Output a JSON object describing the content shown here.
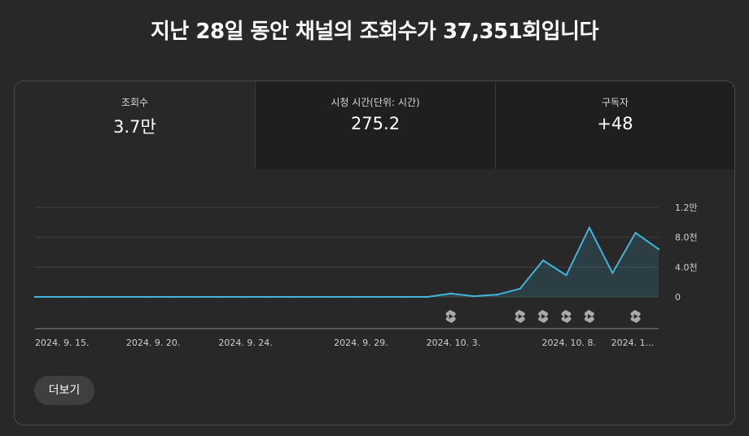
{
  "headline": "지난 28일 동안 채널의 조회수가 37,351회입니다",
  "tabs": [
    {
      "label": "조회수",
      "value": "3.7만"
    },
    {
      "label": "시청 시간(단위: 시간)",
      "value": "275.2"
    },
    {
      "label": "구독자",
      "value": "+48"
    }
  ],
  "more_label": "더보기",
  "colors": {
    "line": "#41b4d8",
    "grid": "#404040",
    "badge": "#aaaaaa"
  },
  "chart_data": {
    "type": "area",
    "title": "",
    "ylim": [
      0,
      12000
    ],
    "yticks": [
      {
        "value": 0,
        "label": "0"
      },
      {
        "value": 4000,
        "label": "4.0천"
      },
      {
        "value": 8000,
        "label": "8.0천"
      },
      {
        "value": 12000,
        "label": "1.2만"
      }
    ],
    "xtick_labels": [
      {
        "index": 0,
        "label": "2024. 9. 15."
      },
      {
        "index": 5,
        "label": "2024. 9. 20."
      },
      {
        "index": 9,
        "label": "2024. 9. 24."
      },
      {
        "index": 14,
        "label": "2024. 9. 29."
      },
      {
        "index": 18,
        "label": "2024. 10. 3."
      },
      {
        "index": 23,
        "label": "2024. 10. 8."
      },
      {
        "index": 26,
        "label": "2024. 1..."
      }
    ],
    "dates": [
      "2024-09-15",
      "2024-09-16",
      "2024-09-17",
      "2024-09-18",
      "2024-09-19",
      "2024-09-20",
      "2024-09-21",
      "2024-09-22",
      "2024-09-23",
      "2024-09-24",
      "2024-09-25",
      "2024-09-26",
      "2024-09-27",
      "2024-09-28",
      "2024-09-29",
      "2024-09-30",
      "2024-10-01",
      "2024-10-02",
      "2024-10-03",
      "2024-10-04",
      "2024-10-05",
      "2024-10-06",
      "2024-10-07",
      "2024-10-08",
      "2024-10-09",
      "2024-10-10",
      "2024-10-11",
      "2024-10-12"
    ],
    "series": [
      {
        "values": [
          0,
          0,
          0,
          0,
          0,
          0,
          0,
          0,
          0,
          0,
          0,
          0,
          0,
          0,
          0,
          0,
          0,
          0,
          450,
          100,
          300,
          1100,
          4900,
          2900,
          9300,
          3200,
          8600,
          6400
        ]
      }
    ],
    "shorts_markers": [
      18,
      21,
      22,
      23,
      24,
      26
    ]
  }
}
